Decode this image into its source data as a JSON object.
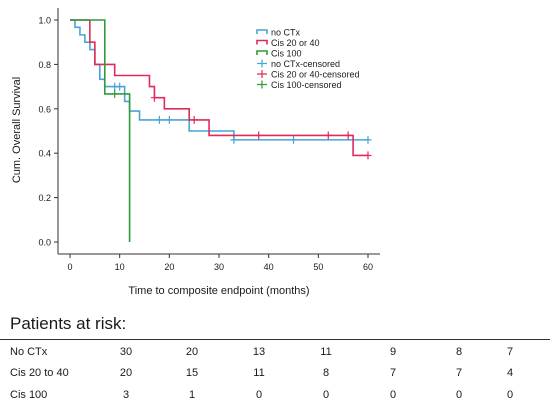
{
  "chart_data": {
    "type": "line",
    "step": true,
    "xlabel": "Time to composite endpoint (months)",
    "ylabel": "Cum. Overall Survival",
    "xlim": [
      0,
      60
    ],
    "ylim": [
      0,
      1
    ],
    "xticks": [
      0,
      10,
      20,
      30,
      40,
      50,
      60
    ],
    "yticks": [
      0.0,
      0.2,
      0.4,
      0.6,
      0.8,
      1.0
    ],
    "tick_labels_x": [
      "0",
      "10",
      "20",
      "30",
      "40",
      "50",
      "60"
    ],
    "tick_labels_y": [
      "0.0",
      "0.2",
      "0.4",
      "0.6",
      "0.8",
      "1.0"
    ],
    "grid": false,
    "legend_position": "top-right",
    "legend": [
      {
        "label": "no CTx",
        "color": "#4aa3d6",
        "kind": "step"
      },
      {
        "label": "Cis 20 or 40",
        "color": "#e02a59",
        "kind": "step"
      },
      {
        "label": "Cis 100",
        "color": "#2e9a3c",
        "kind": "step"
      },
      {
        "label": "no CTx-censored",
        "color": "#4aa3d6",
        "kind": "censor"
      },
      {
        "label": "Cis 20 or 40-censored",
        "color": "#e02a59",
        "kind": "censor"
      },
      {
        "label": "Cis 100-censored",
        "color": "#2e9a3c",
        "kind": "censor"
      }
    ],
    "series": [
      {
        "key": "no-ctx",
        "color": "#4aa3d6",
        "steps": [
          [
            0,
            1.0
          ],
          [
            1,
            0.967
          ],
          [
            2,
            0.933
          ],
          [
            3,
            0.9
          ],
          [
            4,
            0.867
          ],
          [
            5,
            0.8
          ],
          [
            6,
            0.733
          ],
          [
            7,
            0.7
          ],
          [
            11,
            0.633
          ],
          [
            12,
            0.59
          ],
          [
            14,
            0.55
          ],
          [
            24,
            0.5
          ],
          [
            33,
            0.46
          ],
          [
            60,
            0.46
          ]
        ],
        "censored": [
          [
            9,
            0.7
          ],
          [
            10,
            0.7
          ],
          [
            18,
            0.55
          ],
          [
            20,
            0.55
          ],
          [
            33,
            0.46
          ],
          [
            45,
            0.46
          ],
          [
            60,
            0.46
          ]
        ]
      },
      {
        "key": "cis-20-40",
        "color": "#e02a59",
        "steps": [
          [
            0,
            1.0
          ],
          [
            4,
            0.9
          ],
          [
            5,
            0.8
          ],
          [
            9,
            0.75
          ],
          [
            16,
            0.7
          ],
          [
            17,
            0.65
          ],
          [
            19,
            0.6
          ],
          [
            24,
            0.55
          ],
          [
            28,
            0.48
          ],
          [
            57,
            0.39
          ],
          [
            60,
            0.39
          ]
        ],
        "censored": [
          [
            17,
            0.65
          ],
          [
            25,
            0.55
          ],
          [
            38,
            0.48
          ],
          [
            52,
            0.48
          ],
          [
            56,
            0.48
          ],
          [
            60,
            0.39
          ]
        ]
      },
      {
        "key": "cis-100",
        "color": "#2e9a3c",
        "steps": [
          [
            0,
            1.0
          ],
          [
            7,
            0.667
          ],
          [
            12,
            0.0
          ]
        ],
        "censored": [
          [
            9,
            0.667
          ]
        ]
      }
    ]
  },
  "risk_table": {
    "title": "Patients at risk:",
    "rows": [
      {
        "label": "No CTx",
        "values": [
          "30",
          "20",
          "13",
          "11",
          "9",
          "8",
          "7"
        ]
      },
      {
        "label": "Cis 20 to 40",
        "values": [
          "20",
          "15",
          "11",
          "8",
          "7",
          "7",
          "4"
        ]
      },
      {
        "label": "Cis 100",
        "values": [
          "3",
          "1",
          "0",
          "0",
          "0",
          "0",
          "0"
        ]
      }
    ]
  }
}
